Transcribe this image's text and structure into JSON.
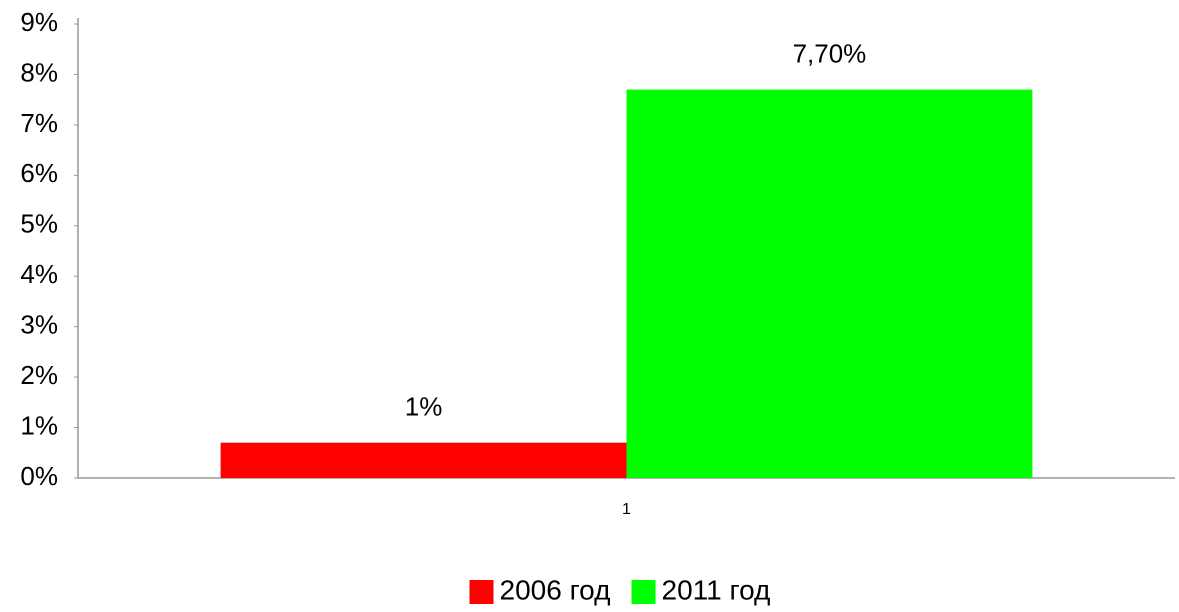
{
  "chart_data": {
    "type": "bar",
    "categories": [
      "1"
    ],
    "series": [
      {
        "name": "2006 год",
        "color": "#ff0000",
        "values": [
          0.7
        ],
        "value_labels": [
          "1%"
        ]
      },
      {
        "name": "2011 год",
        "color": "#00ff00",
        "values": [
          7.7
        ],
        "value_labels": [
          "7,70%"
        ]
      }
    ],
    "ylim": [
      0,
      9
    ],
    "yticks": [
      {
        "value": 0,
        "label": "0%"
      },
      {
        "value": 1,
        "label": "1%"
      },
      {
        "value": 2,
        "label": "2%"
      },
      {
        "value": 3,
        "label": "3%"
      },
      {
        "value": 4,
        "label": "4%"
      },
      {
        "value": 5,
        "label": "5%"
      },
      {
        "value": 6,
        "label": "6%"
      },
      {
        "value": 7,
        "label": "7%"
      },
      {
        "value": 8,
        "label": "8%"
      },
      {
        "value": 9,
        "label": "9%"
      }
    ],
    "grid": false,
    "legend": "bottom"
  }
}
